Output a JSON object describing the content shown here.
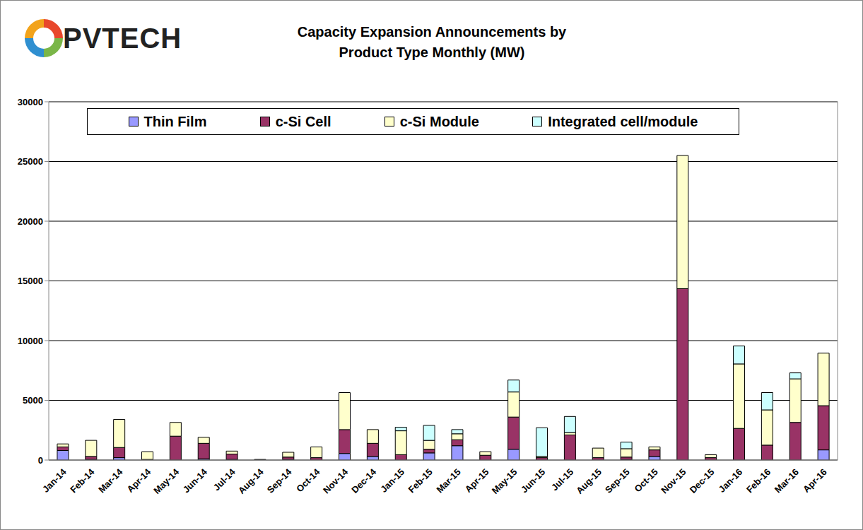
{
  "chart_data": {
    "type": "bar",
    "title": "Capacity Expansion Announcements by",
    "subtitle": "Product Type Monthly (MW)",
    "logo_text": "PVTECH",
    "categories": [
      "Jan-14",
      "Feb-14",
      "Mar-14",
      "Apr-14",
      "May-14",
      "Jun-14",
      "Jul-14",
      "Aug-14",
      "Sep-14",
      "Oct-14",
      "Nov-14",
      "Dec-14",
      "Jan-15",
      "Feb-15",
      "Mar-15",
      "Apr-15",
      "May-15",
      "Jun-15",
      "Jul-15",
      "Aug-15",
      "Sep-15",
      "Oct-15",
      "Nov-15",
      "Dec-15",
      "Jan-16",
      "Feb-16",
      "Mar-16",
      "Apr-16"
    ],
    "series": [
      {
        "name": "Thin Film",
        "color": "#9999ff",
        "values": [
          800,
          50,
          200,
          0,
          0,
          100,
          50,
          0,
          50,
          0,
          550,
          300,
          0,
          600,
          1200,
          0,
          900,
          0,
          0,
          0,
          50,
          300,
          0,
          0,
          0,
          0,
          0,
          850
        ]
      },
      {
        "name": "c-Si Cell",
        "color": "#993366",
        "values": [
          300,
          250,
          850,
          50,
          2000,
          1300,
          450,
          30,
          200,
          200,
          2000,
          1100,
          450,
          300,
          500,
          400,
          2700,
          200,
          2100,
          200,
          200,
          550,
          14350,
          200,
          2650,
          1250,
          3150,
          3700
        ]
      },
      {
        "name": "c-Si Module",
        "color": "#ffffcc",
        "values": [
          250,
          1350,
          2350,
          650,
          1150,
          500,
          250,
          20,
          400,
          900,
          3100,
          1150,
          2000,
          750,
          500,
          300,
          2100,
          100,
          200,
          800,
          700,
          250,
          11150,
          250,
          5400,
          2950,
          3650,
          4400
        ]
      },
      {
        "name": "Integrated cell/module",
        "color": "#ccffff",
        "values": [
          0,
          0,
          0,
          0,
          0,
          0,
          0,
          0,
          0,
          0,
          0,
          0,
          300,
          1250,
          350,
          0,
          1000,
          2400,
          1350,
          0,
          550,
          0,
          0,
          0,
          1500,
          1450,
          500,
          0
        ]
      }
    ],
    "ylim": [
      0,
      30000
    ],
    "yticks": [
      0,
      5000,
      10000,
      15000,
      20000,
      25000,
      30000
    ],
    "grid": true,
    "stacked": true,
    "legend": "top"
  }
}
